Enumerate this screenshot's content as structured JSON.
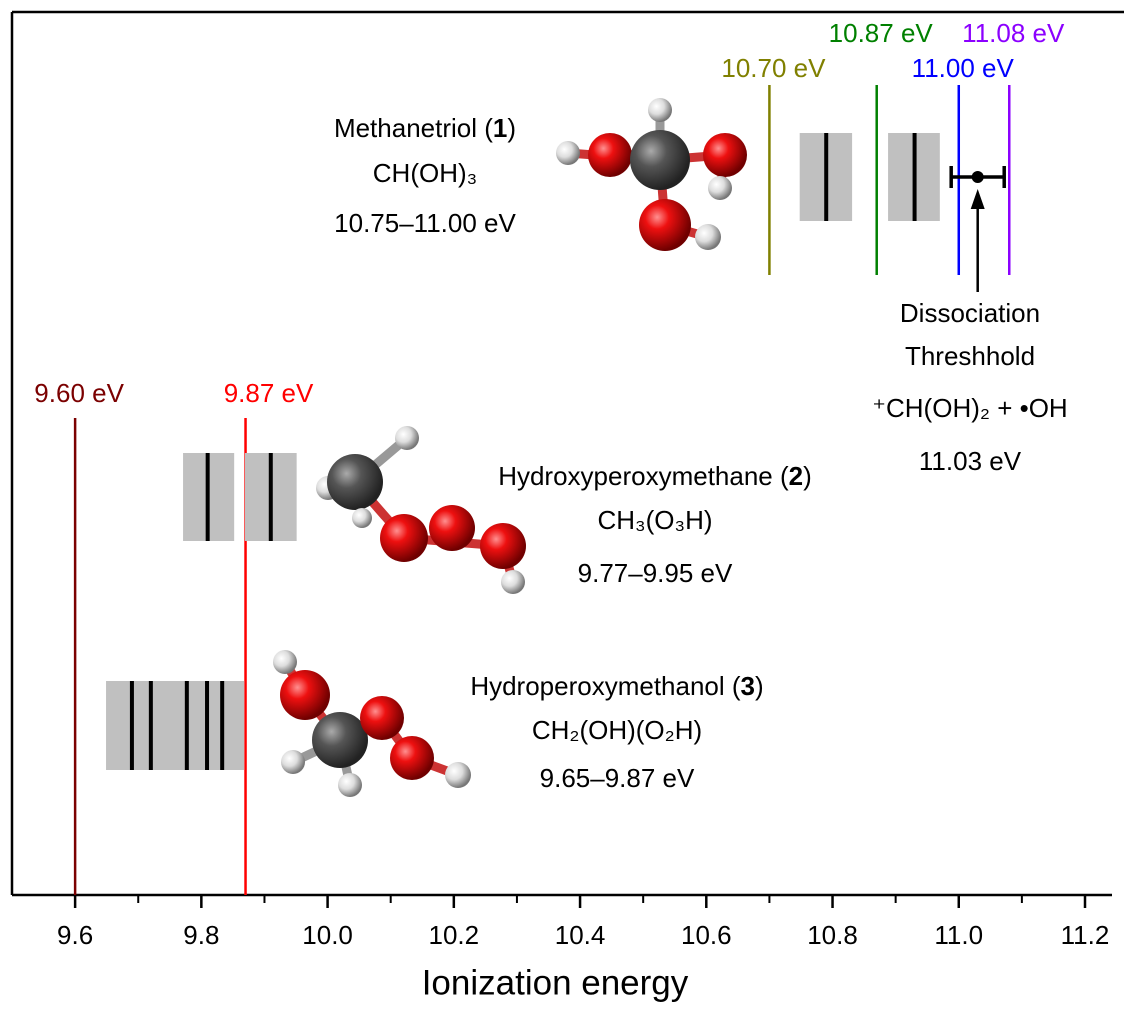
{
  "chart_data": {
    "type": "ionization-diagram",
    "x_label": "Ionization energy",
    "xlim": [
      9.5,
      11.2
    ],
    "xticks": [
      9.6,
      9.8,
      {
        "value": 10,
        "label": "10.0"
      },
      10.2,
      10.4,
      10.6,
      10.8,
      {
        "value": 11,
        "label": "11.0"
      },
      11.2
    ],
    "xminorticks": [
      9.7,
      9.9,
      10.1,
      10.3,
      10.5,
      10.7,
      10.9,
      11.1
    ],
    "reference_lines": [
      {
        "value": 9.6,
        "label": "9.60 eV",
        "color": "#7b0000"
      },
      {
        "value": 9.87,
        "label": "9.87 eV",
        "color": "#ff0000"
      },
      {
        "value": 10.7,
        "label": "10.70 eV",
        "color": "#808000"
      },
      {
        "value": 10.87,
        "label": "10.87 eV",
        "color": "#008000"
      },
      {
        "value": 11.0,
        "label": "11.00 eV",
        "color": "#0000ff"
      },
      {
        "value": 11.08,
        "label": "11.08 eV",
        "color": "#8b00ff"
      }
    ],
    "molecules": [
      {
        "name_parts": [
          "Methanetriol (",
          "1",
          ")"
        ],
        "formula": "CH(OH)₃",
        "range": "10.75–11.00 eV",
        "boxes": [
          [
            10.748,
            10.831
          ],
          [
            10.888,
            10.97
          ]
        ],
        "lines": [
          10.79,
          10.93
        ]
      },
      {
        "name_parts": [
          "Hydroxyperoxymethane (",
          "2",
          ")"
        ],
        "formula": "CH₃(O₃H)",
        "range": "9.77–9.95 eV",
        "boxes": [
          [
            9.771,
            9.852
          ],
          [
            9.869,
            9.951
          ]
        ],
        "lines": [
          9.81,
          9.91
        ]
      },
      {
        "name_parts": [
          "Hydroperoxymethanol (",
          "3",
          ")"
        ],
        "formula": "CH₂(OH)(O₂H)",
        "range": "9.65–9.87 eV",
        "boxes": [
          [
            9.649,
            9.868
          ]
        ],
        "lines": [
          9.69,
          9.72,
          9.777,
          9.809,
          9.833
        ]
      }
    ],
    "threshold": {
      "value": 11.03,
      "error": 0.042,
      "value_label": "11.03 eV",
      "text": [
        "Dissociation",
        "Threshhold",
        "⁺CH(OH)₂ + •OH"
      ]
    }
  }
}
